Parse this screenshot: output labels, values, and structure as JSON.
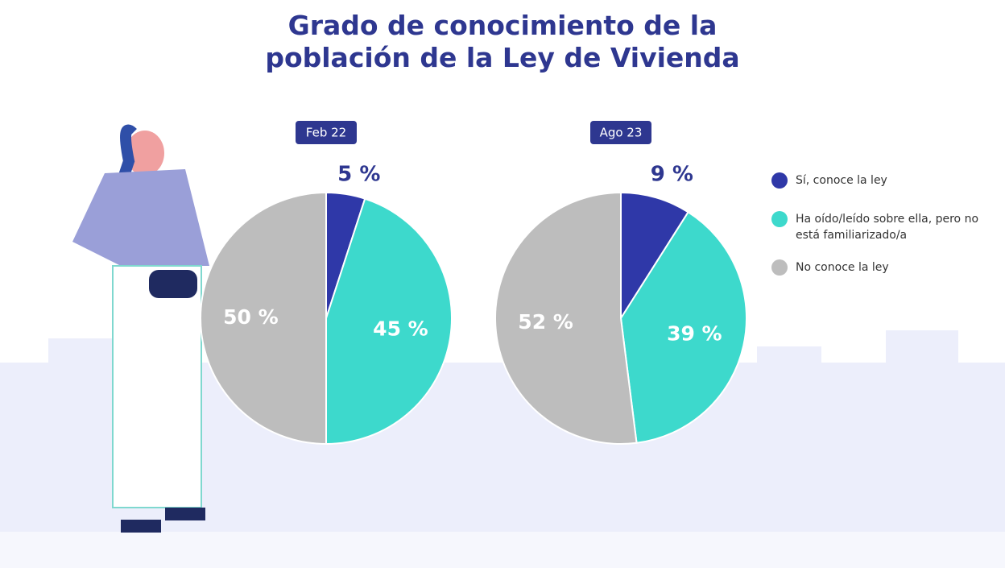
{
  "title": "Grado de conocimiento de la población de la Ley de Vivienda",
  "legend": {
    "labels": [
      "Sí, conoce la ley",
      "Ha oído/leído sobre ella, pero no está familiarizado/a",
      "No conoce la ley"
    ],
    "colors": [
      "#2f38a8",
      "#3dd9cc",
      "#bdbdbd"
    ]
  },
  "chart_data": [
    {
      "type": "pie",
      "title": "Feb 22",
      "values": [
        5,
        45,
        50
      ],
      "value_labels": [
        "5 %",
        "45 %",
        "50 %"
      ]
    },
    {
      "type": "pie",
      "title": "Ago 23",
      "values": [
        9,
        39,
        52
      ],
      "value_labels": [
        "9 %",
        "39 %",
        "52 %"
      ]
    }
  ]
}
